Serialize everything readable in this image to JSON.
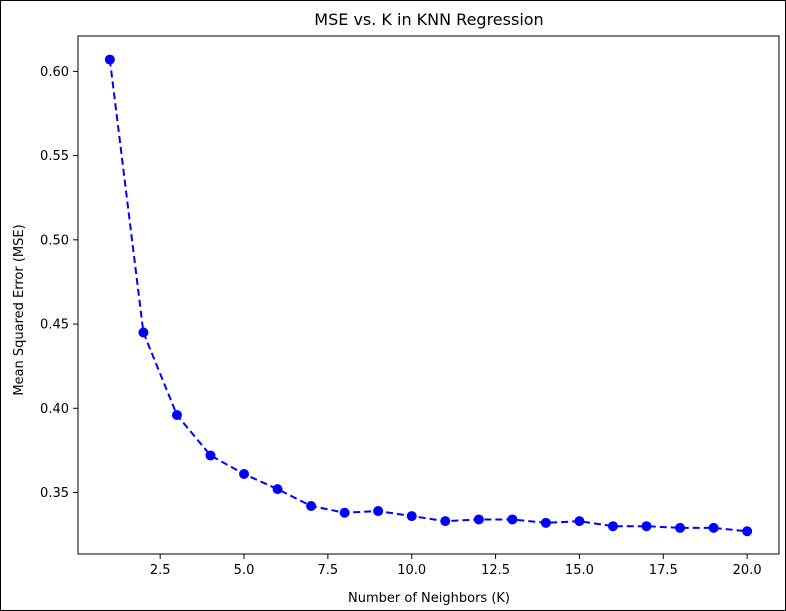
{
  "chart_data": {
    "type": "line",
    "title": "MSE vs. K in KNN Regression",
    "xlabel": "Number of Neighbors (K)",
    "ylabel": "Mean Squared Error (MSE)",
    "xlim": [
      0.05,
      20.95
    ],
    "ylim": [
      0.3135,
      0.621
    ],
    "x_ticks": [
      2.5,
      5.0,
      7.5,
      10.0,
      12.5,
      15.0,
      17.5,
      20.0
    ],
    "x_tick_labels": [
      "2.5",
      "5.0",
      "7.5",
      "10.0",
      "12.5",
      "15.0",
      "17.5",
      "20.0"
    ],
    "y_ticks": [
      0.35,
      0.4,
      0.45,
      0.5,
      0.55,
      0.6
    ],
    "y_tick_labels": [
      "0.35",
      "0.40",
      "0.45",
      "0.50",
      "0.55",
      "0.60"
    ],
    "grid": false,
    "series": [
      {
        "color": "#0000ff",
        "line_style": "dashed",
        "marker": "circle",
        "x": [
          1,
          2,
          3,
          4,
          5,
          6,
          7,
          8,
          9,
          10,
          11,
          12,
          13,
          14,
          15,
          16,
          17,
          18,
          19,
          20
        ],
        "y": [
          0.607,
          0.445,
          0.396,
          0.372,
          0.361,
          0.352,
          0.342,
          0.338,
          0.339,
          0.336,
          0.333,
          0.334,
          0.334,
          0.332,
          0.333,
          0.33,
          0.33,
          0.329,
          0.329,
          0.327
        ]
      }
    ]
  }
}
